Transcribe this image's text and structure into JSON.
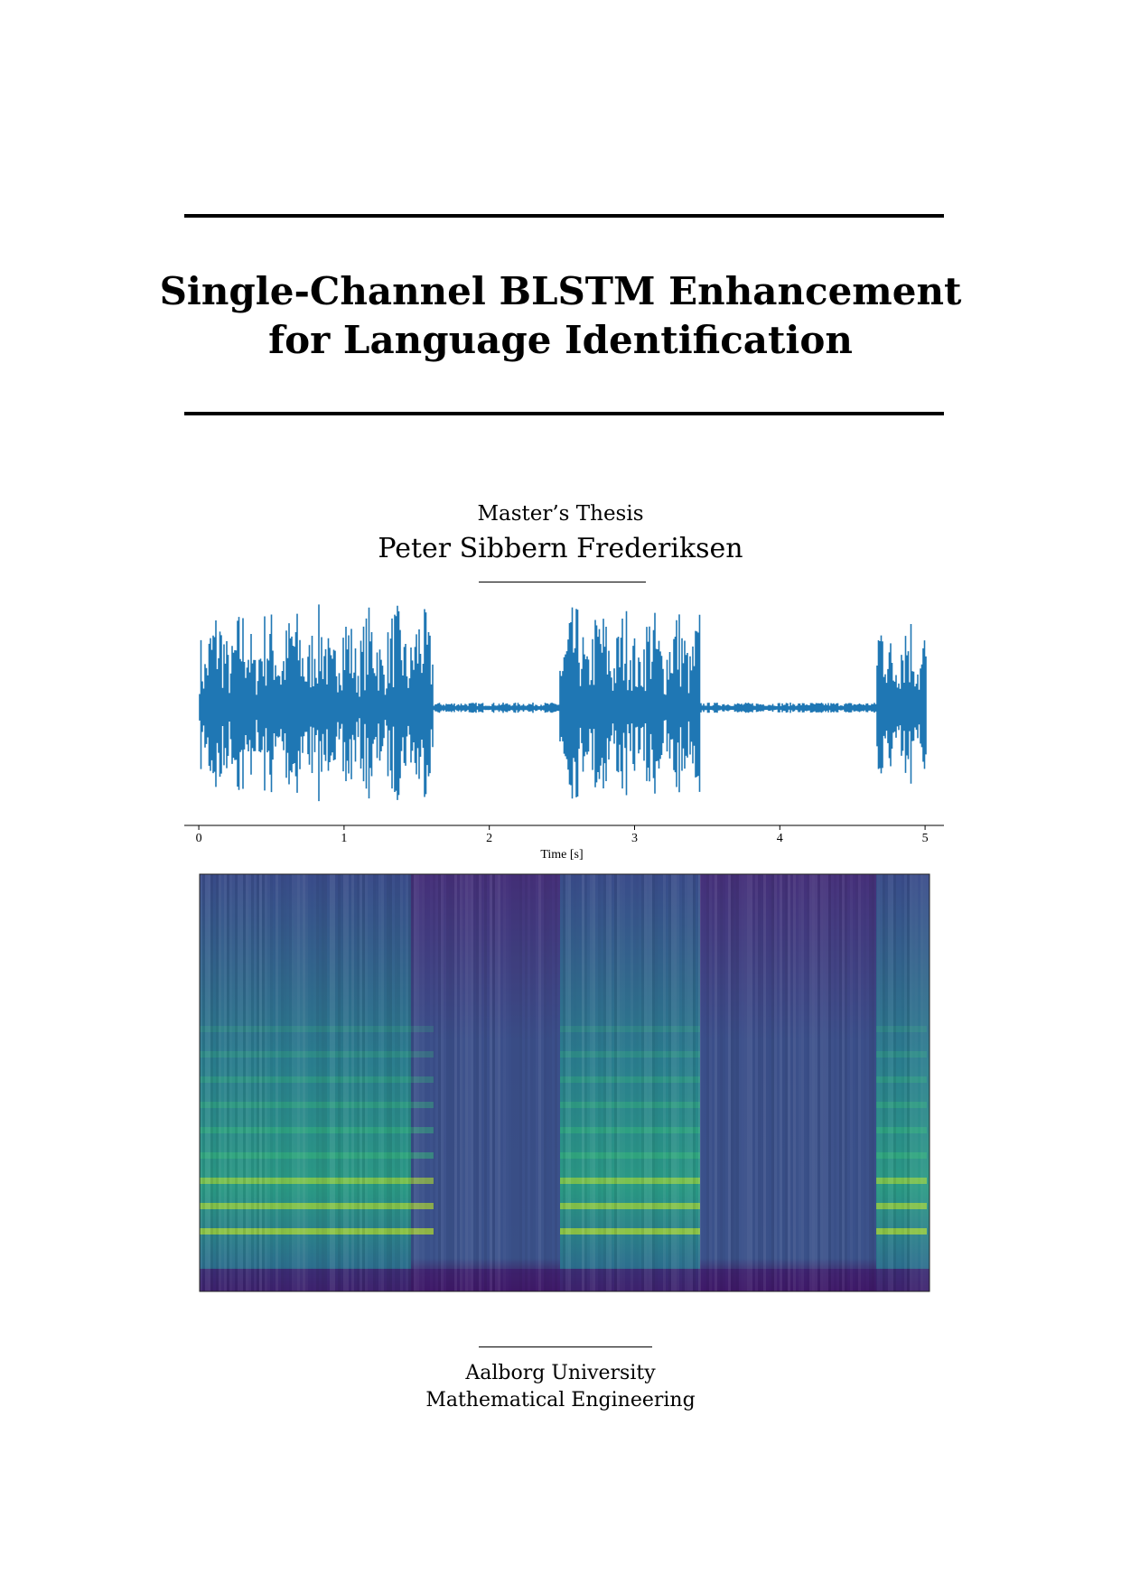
{
  "title": [
    "Single-Channel BLSTM Enhancement",
    "for Language Identification"
  ],
  "subtitle": "Master’s Thesis",
  "author": "Peter Sibbern Frederiksen",
  "figure": {
    "xlabel": "Time [s]",
    "xlim": [
      -0.1,
      5.13
    ],
    "xticks": [
      0,
      1,
      2,
      3,
      4,
      5
    ]
  },
  "affiliation": [
    "Aalborg University",
    "Mathematical Engineering"
  ]
}
